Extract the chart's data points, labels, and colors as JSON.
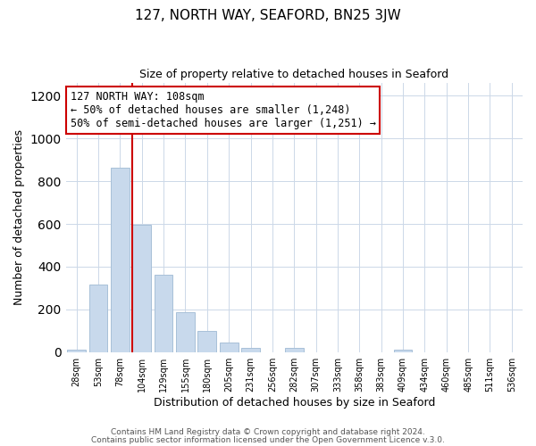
{
  "title": "127, NORTH WAY, SEAFORD, BN25 3JW",
  "subtitle": "Size of property relative to detached houses in Seaford",
  "xlabel": "Distribution of detached houses by size in Seaford",
  "ylabel": "Number of detached properties",
  "bar_labels": [
    "28sqm",
    "53sqm",
    "78sqm",
    "104sqm",
    "129sqm",
    "155sqm",
    "180sqm",
    "205sqm",
    "231sqm",
    "256sqm",
    "282sqm",
    "307sqm",
    "333sqm",
    "358sqm",
    "383sqm",
    "409sqm",
    "434sqm",
    "460sqm",
    "485sqm",
    "511sqm",
    "536sqm"
  ],
  "bar_values": [
    10,
    318,
    862,
    598,
    362,
    188,
    98,
    45,
    18,
    0,
    18,
    0,
    0,
    0,
    0,
    12,
    0,
    0,
    0,
    0,
    0
  ],
  "bar_color": "#c8d9ec",
  "bar_edge_color": "#a8c0d8",
  "vline_color": "#cc0000",
  "ylim": [
    0,
    1260
  ],
  "yticks": [
    0,
    200,
    400,
    600,
    800,
    1000,
    1200
  ],
  "annotation_title": "127 NORTH WAY: 108sqm",
  "annotation_line1": "← 50% of detached houses are smaller (1,248)",
  "annotation_line2": "50% of semi-detached houses are larger (1,251) →",
  "annotation_box_color": "#ffffff",
  "annotation_box_edge": "#cc0000",
  "footer_line1": "Contains HM Land Registry data © Crown copyright and database right 2024.",
  "footer_line2": "Contains public sector information licensed under the Open Government Licence v.3.0.",
  "background_color": "#ffffff",
  "grid_color": "#ccd8e8"
}
